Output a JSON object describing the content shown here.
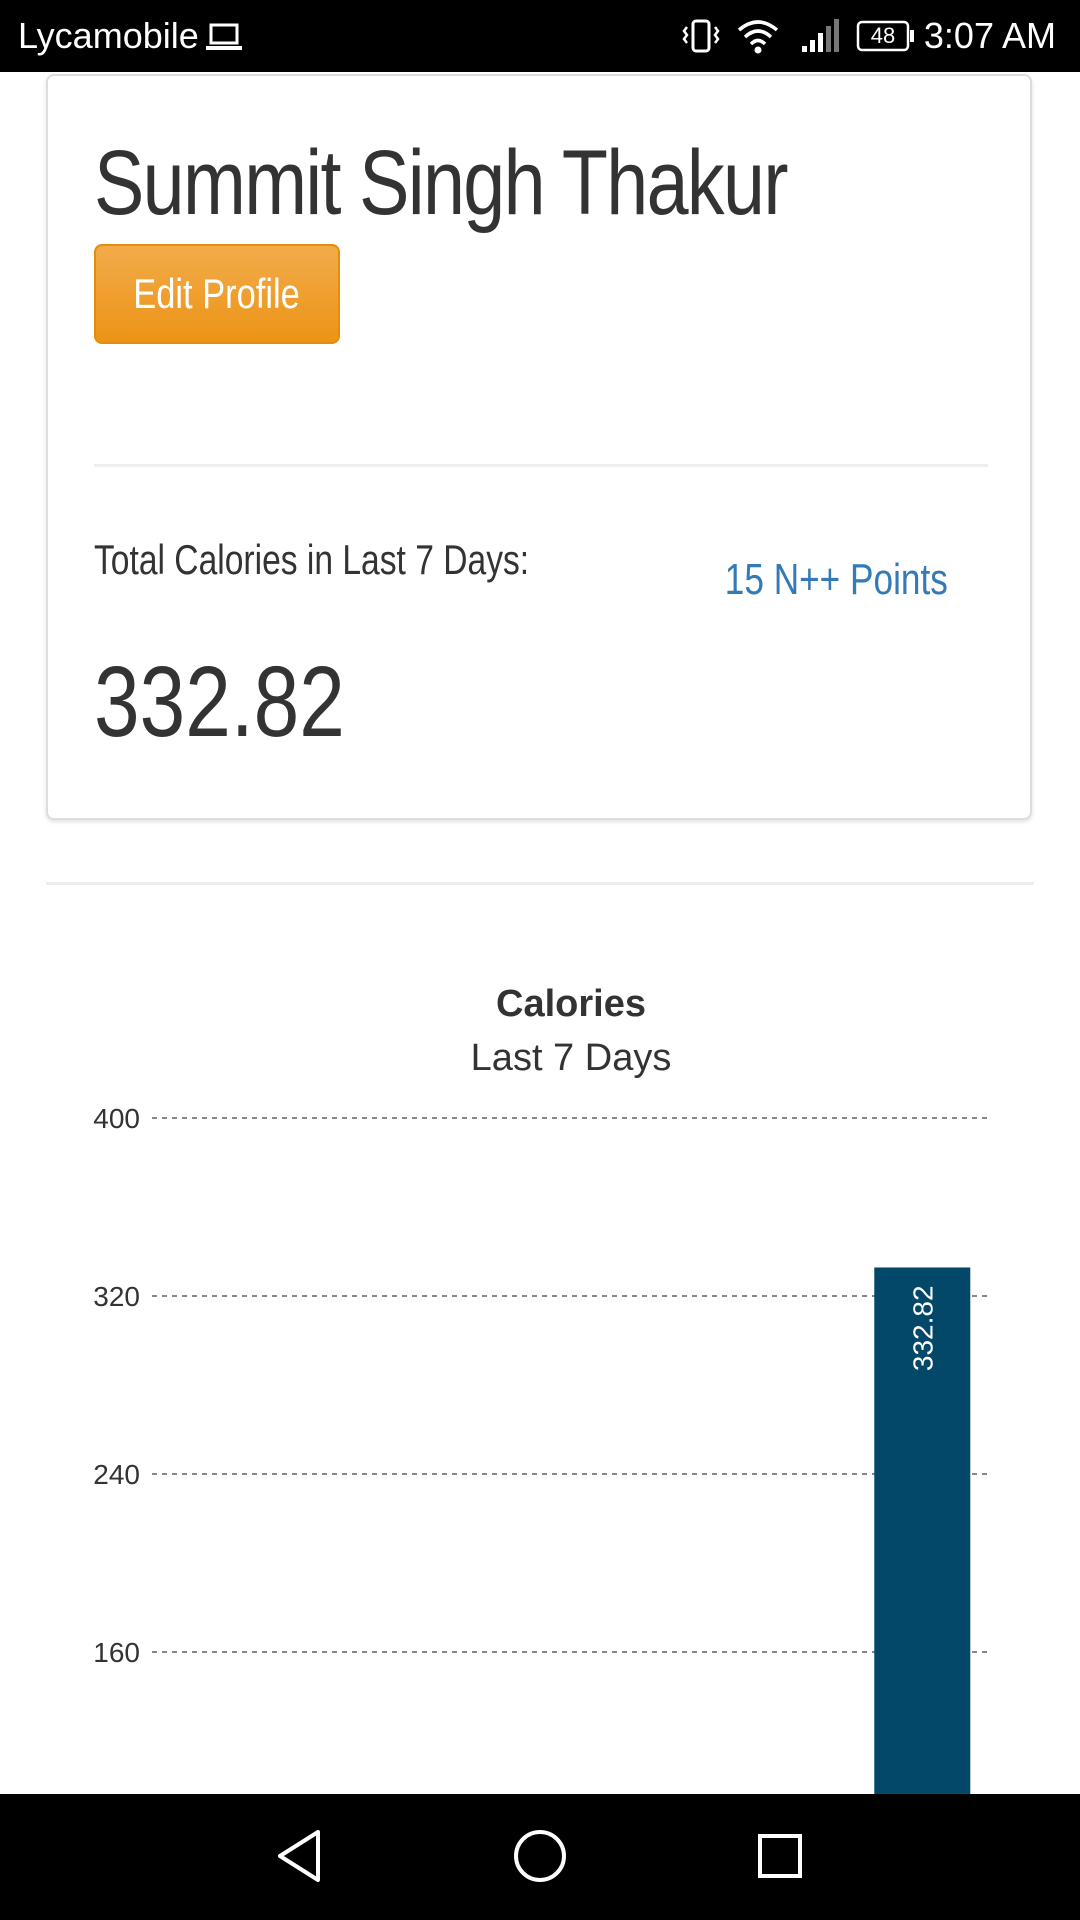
{
  "status_bar": {
    "carrier": "Lycamobile",
    "battery_level": "48",
    "time": "3:07 AM",
    "icons": [
      "laptop-icon",
      "vibrate-icon",
      "wifi-icon",
      "signal-icon",
      "battery-icon"
    ]
  },
  "profile": {
    "name": "Summit Singh Thakur",
    "edit_button_label": "Edit Profile",
    "total_label": "Total Calories in Last 7 Days:",
    "points_link": "15 N++ Points",
    "total_value": "332.82",
    "colors": {
      "button": "#ec9416",
      "link": "#337ab7",
      "text": "#333333"
    }
  },
  "chart_data": {
    "type": "bar",
    "title": "Calories",
    "subtitle": "Last 7 Days",
    "y_ticks": [
      160,
      240,
      320,
      400
    ],
    "ylim": [
      0,
      400
    ],
    "grid": true,
    "bar_color": "#034769",
    "categories": [
      "",
      "",
      "",
      "",
      "",
      "",
      ""
    ],
    "values": [
      0,
      0,
      0,
      0,
      0,
      0,
      332.82
    ],
    "data_labels": [
      "",
      "",
      "",
      "",
      "",
      "",
      "332.82"
    ]
  },
  "nav_bar": {
    "icons": [
      "back-icon",
      "home-icon",
      "recents-icon"
    ]
  }
}
